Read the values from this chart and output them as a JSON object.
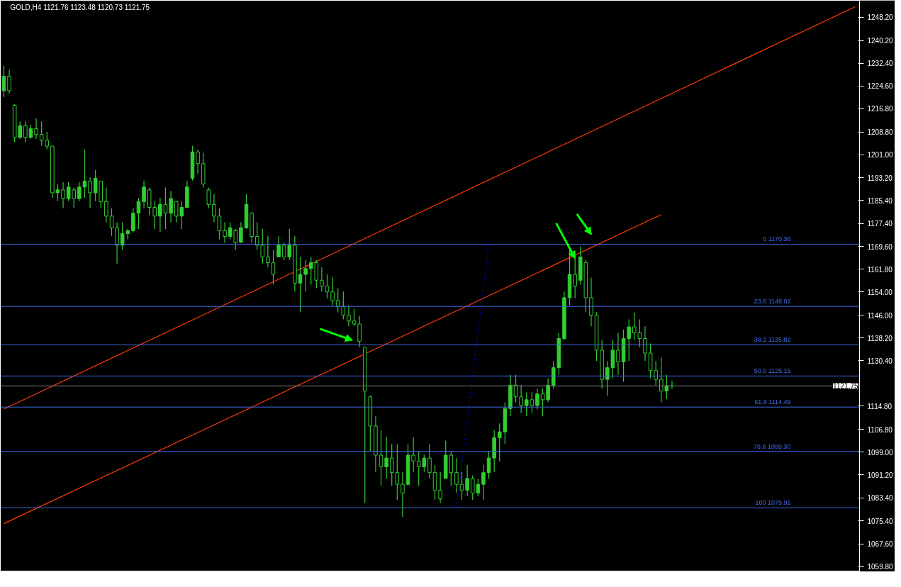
{
  "chart_data": {
    "type": "candlestick",
    "title": "GOLD,H4  1121.76 1123.48 1120.73 1121.75",
    "color": "#32cd32",
    "categories": [
      null,
      null,
      null,
      null,
      null,
      null,
      null,
      null,
      null,
      null,
      null,
      null,
      null,
      null,
      null,
      null,
      null,
      null,
      null,
      null,
      null,
      null,
      null,
      null,
      null,
      null,
      null,
      null,
      null,
      null,
      null,
      null,
      null,
      null,
      null,
      null,
      null,
      null,
      null,
      null,
      null,
      null,
      null,
      null,
      null,
      null,
      null,
      null,
      null,
      null,
      null,
      null,
      null,
      null,
      null,
      null,
      null,
      null,
      null,
      null,
      null,
      null,
      null,
      null,
      null,
      null,
      null,
      null,
      null,
      null,
      null,
      null,
      null,
      null,
      null,
      null,
      null,
      null,
      null,
      null,
      null,
      null,
      null,
      null,
      null,
      null,
      null,
      null,
      null,
      null,
      null,
      null,
      null,
      null,
      null,
      null,
      null,
      null,
      null,
      null,
      null,
      null,
      null,
      null,
      null,
      null,
      null,
      null,
      null,
      null,
      null,
      null,
      null,
      null,
      null,
      null,
      null,
      null,
      null,
      null,
      null,
      null,
      null,
      null,
      null,
      null,
      null,
      null,
      null,
      null,
      null,
      null,
      null,
      null,
      null,
      null,
      null,
      null,
      null,
      null,
      null,
      null,
      null,
      null,
      null,
      null,
      null,
      null,
      null,
      null,
      null,
      null,
      null,
      null,
      null,
      null,
      null,
      null,
      null
    ],
    "ohlc": [
      [
        1223.0,
        1231.5,
        1220.8,
        1228.0
      ],
      [
        1228.0,
        1230.3,
        1222.0,
        1223.0
      ],
      [
        1218.0,
        1218.4,
        1205.3,
        1207.0
      ],
      [
        1207.0,
        1212.5,
        1206.5,
        1211.0
      ],
      [
        1211.0,
        1212.5,
        1205.3,
        1207.0
      ],
      [
        1207.0,
        1211.3,
        1206.5,
        1210.0
      ],
      [
        1210.0,
        1213.6,
        1206.5,
        1208.0
      ],
      [
        1208.0,
        1212.5,
        1204.1,
        1206.0
      ],
      [
        1206.0,
        1208.9,
        1202.9,
        1204.0
      ],
      [
        1204.0,
        1204.1,
        1186.3,
        1188.0
      ],
      [
        1188.0,
        1191.0,
        1185.1,
        1189.0
      ],
      [
        1189.0,
        1191.7,
        1182.7,
        1186.0
      ],
      [
        1186.0,
        1191.7,
        1185.1,
        1190.0
      ],
      [
        1189.0,
        1189.8,
        1182.7,
        1186.0
      ],
      [
        1186.0,
        1191.7,
        1185.1,
        1190.0
      ],
      [
        1190.0,
        1202.9,
        1186.3,
        1192.0
      ],
      [
        1192.0,
        1193.4,
        1182.7,
        1188.0
      ],
      [
        1188.0,
        1195.8,
        1185.1,
        1193.0
      ],
      [
        1192.0,
        1192.2,
        1182.7,
        1185.0
      ],
      [
        1185.0,
        1189.8,
        1177.9,
        1180.0
      ],
      [
        1180.0,
        1182.7,
        1173.2,
        1176.0
      ],
      [
        1176.0,
        1177.9,
        1163.7,
        1170.0
      ],
      [
        1170.0,
        1177.9,
        1168.4,
        1174.0
      ],
      [
        1174.0,
        1175.6,
        1172.0,
        1175.0
      ],
      [
        1175.0,
        1182.7,
        1174.4,
        1181.0
      ],
      [
        1181.0,
        1186.3,
        1175.6,
        1185.0
      ],
      [
        1185.0,
        1192.2,
        1182.7,
        1190.0
      ],
      [
        1189.0,
        1189.8,
        1180.3,
        1183.0
      ],
      [
        1183.0,
        1185.1,
        1175.6,
        1180.0
      ],
      [
        1180.0,
        1186.3,
        1174.4,
        1184.0
      ],
      [
        1184.0,
        1189.8,
        1175.6,
        1181.0
      ],
      [
        1181.0,
        1188.6,
        1177.9,
        1186.0
      ],
      [
        1185.0,
        1185.1,
        1177.9,
        1180.0
      ],
      [
        1180.0,
        1185.1,
        1175.6,
        1183.0
      ],
      [
        1183.0,
        1192.2,
        1182.7,
        1190.0
      ],
      [
        1193.0,
        1204.1,
        1192.2,
        1202.0
      ],
      [
        1202.0,
        1202.9,
        1194.6,
        1198.0
      ],
      [
        1198.0,
        1201.7,
        1189.8,
        1191.0
      ],
      [
        1189.0,
        1189.8,
        1182.7,
        1184.0
      ],
      [
        1184.0,
        1187.5,
        1177.9,
        1180.0
      ],
      [
        1180.0,
        1182.7,
        1172.0,
        1175.0
      ],
      [
        1175.0,
        1177.9,
        1170.8,
        1173.0
      ],
      [
        1173.0,
        1177.9,
        1172.0,
        1176.0
      ],
      [
        1175.0,
        1175.6,
        1168.4,
        1171.0
      ],
      [
        1171.0,
        1177.9,
        1170.8,
        1176.0
      ],
      [
        1176.0,
        1187.5,
        1175.6,
        1184.0
      ],
      [
        1181.0,
        1181.5,
        1170.8,
        1173.0
      ],
      [
        1173.0,
        1177.9,
        1168.4,
        1170.0
      ],
      [
        1170.0,
        1175.6,
        1163.7,
        1166.0
      ],
      [
        1166.0,
        1173.2,
        1162.5,
        1164.0
      ],
      [
        1164.0,
        1168.4,
        1156.5,
        1160.0
      ],
      [
        1166.0,
        1173.2,
        1166.0,
        1170.0
      ],
      [
        1170.0,
        1170.8,
        1164.9,
        1166.0
      ],
      [
        1166.0,
        1175.6,
        1164.9,
        1170.0
      ],
      [
        1170.0,
        1173.2,
        1154.1,
        1157.0
      ],
      [
        1157.0,
        1166.0,
        1147.0,
        1160.0
      ],
      [
        1160.0,
        1164.9,
        1154.1,
        1162.0
      ],
      [
        1162.0,
        1166.0,
        1156.5,
        1164.0
      ],
      [
        1164.0,
        1164.9,
        1155.3,
        1158.0
      ],
      [
        1158.0,
        1162.5,
        1154.1,
        1156.0
      ],
      [
        1156.0,
        1160.1,
        1151.8,
        1154.0
      ],
      [
        1154.0,
        1158.9,
        1149.4,
        1151.0
      ],
      [
        1151.0,
        1155.3,
        1147.0,
        1149.0
      ],
      [
        1149.0,
        1154.1,
        1144.6,
        1146.0
      ],
      [
        1146.0,
        1149.4,
        1142.2,
        1144.0
      ],
      [
        1144.0,
        1148.2,
        1142.2,
        1143.0
      ],
      [
        1143.0,
        1145.8,
        1135.1,
        1137.0
      ],
      [
        1135.0,
        1135.1,
        1081.6,
        1120.0
      ],
      [
        1118.0,
        1118.4,
        1099.4,
        1108.0
      ],
      [
        1108.0,
        1111.3,
        1092.3,
        1098.0
      ],
      [
        1098.0,
        1106.5,
        1087.5,
        1094.0
      ],
      [
        1094.0,
        1104.2,
        1089.9,
        1097.0
      ],
      [
        1097.0,
        1101.8,
        1087.5,
        1092.0
      ],
      [
        1092.0,
        1101.8,
        1082.7,
        1088.0
      ],
      [
        1088.0,
        1092.3,
        1076.8,
        1085.0
      ],
      [
        1088.0,
        1101.8,
        1087.5,
        1098.0
      ],
      [
        1098.0,
        1104.2,
        1092.3,
        1096.0
      ],
      [
        1096.0,
        1099.4,
        1087.5,
        1094.0
      ],
      [
        1094.0,
        1098.2,
        1092.3,
        1097.0
      ],
      [
        1097.0,
        1101.8,
        1089.9,
        1092.0
      ],
      [
        1092.0,
        1094.6,
        1082.7,
        1086.0
      ],
      [
        1086.0,
        1092.3,
        1081.6,
        1083.0
      ],
      [
        1090.0,
        1103.0,
        1089.9,
        1098.0
      ],
      [
        1098.0,
        1099.4,
        1087.5,
        1092.0
      ],
      [
        1092.0,
        1097.0,
        1085.1,
        1088.0
      ],
      [
        1088.0,
        1092.3,
        1082.7,
        1086.0
      ],
      [
        1086.0,
        1094.6,
        1083.9,
        1090.0
      ],
      [
        1090.0,
        1091.1,
        1082.7,
        1085.0
      ],
      [
        1085.0,
        1089.9,
        1083.9,
        1088.0
      ],
      [
        1088.0,
        1094.6,
        1082.7,
        1092.0
      ],
      [
        1092.0,
        1099.4,
        1089.9,
        1097.0
      ],
      [
        1097.0,
        1106.5,
        1092.3,
        1104.0
      ],
      [
        1104.0,
        1108.9,
        1095.8,
        1106.0
      ],
      [
        1106.0,
        1116.1,
        1101.8,
        1114.0
      ],
      [
        1114.0,
        1125.6,
        1111.3,
        1122.0
      ],
      [
        1122.0,
        1125.6,
        1116.1,
        1118.0
      ],
      [
        1118.0,
        1122.0,
        1112.5,
        1115.0
      ],
      [
        1115.0,
        1119.6,
        1111.3,
        1117.0
      ],
      [
        1117.0,
        1119.6,
        1112.5,
        1115.0
      ],
      [
        1115.0,
        1120.8,
        1113.7,
        1119.0
      ],
      [
        1119.0,
        1120.8,
        1111.3,
        1117.0
      ],
      [
        1117.0,
        1124.4,
        1116.1,
        1122.0
      ],
      [
        1122.0,
        1130.3,
        1120.8,
        1128.0
      ],
      [
        1128.0,
        1139.9,
        1125.6,
        1138.0
      ],
      [
        1138.0,
        1154.1,
        1137.5,
        1152.0
      ],
      [
        1152.0,
        1168.4,
        1149.4,
        1160.0
      ],
      [
        1160.0,
        1166.0,
        1151.8,
        1156.0
      ],
      [
        1158.0,
        1169.6,
        1156.5,
        1166.0
      ],
      [
        1164.0,
        1164.9,
        1147.0,
        1152.0
      ],
      [
        1152.0,
        1158.9,
        1142.2,
        1146.0
      ],
      [
        1146.0,
        1147.0,
        1130.3,
        1134.0
      ],
      [
        1134.0,
        1137.5,
        1120.8,
        1124.0
      ],
      [
        1124.0,
        1130.3,
        1118.4,
        1128.0
      ],
      [
        1128.0,
        1137.5,
        1124.4,
        1134.0
      ],
      [
        1134.0,
        1139.9,
        1125.6,
        1130.0
      ],
      [
        1130.0,
        1141.1,
        1123.2,
        1138.0
      ],
      [
        1138.0,
        1144.6,
        1130.3,
        1142.0
      ],
      [
        1142.0,
        1147.0,
        1137.5,
        1140.0
      ],
      [
        1140.0,
        1144.6,
        1135.1,
        1138.0
      ],
      [
        1138.0,
        1142.2,
        1130.3,
        1133.0
      ],
      [
        1133.0,
        1136.3,
        1124.4,
        1127.0
      ],
      [
        1127.0,
        1130.3,
        1122.0,
        1124.0
      ],
      [
        1124.0,
        1131.5,
        1116.1,
        1120.0
      ],
      [
        1120.0,
        1125.6,
        1117.3,
        1121.8
      ],
      [
        1121.76,
        1123.48,
        1120.73,
        1121.75
      ],
      null,
      null,
      null,
      null,
      null,
      null,
      null,
      null,
      null,
      null,
      null,
      null,
      null,
      null,
      null,
      null,
      null,
      null,
      null,
      null,
      null,
      null,
      null,
      null,
      null,
      null,
      null,
      null,
      null,
      null,
      null,
      null,
      null,
      null
    ],
    "series": [
      {
        "type": "line",
        "color": "#ff3c00",
        "values": [
          1113.8,
          null,
          null,
          null,
          null,
          null,
          null,
          null,
          null,
          null,
          null,
          null,
          null,
          null,
          null,
          null,
          null,
          null,
          null,
          null,
          null,
          null,
          null,
          null,
          null,
          null,
          null,
          null,
          null,
          null,
          null,
          null,
          null,
          null,
          null,
          null,
          null,
          null,
          null,
          null,
          null,
          null,
          null,
          null,
          null,
          null,
          null,
          null,
          null,
          null,
          null,
          null,
          null,
          null,
          null,
          null,
          null,
          null,
          null,
          null,
          null,
          null,
          null,
          null,
          null,
          null,
          null,
          null,
          null,
          null,
          null,
          null,
          null,
          null,
          null,
          null,
          null,
          null,
          null,
          null,
          null,
          null,
          null,
          null,
          null,
          null,
          null,
          null,
          null,
          null,
          null,
          null,
          null,
          null,
          null,
          null,
          null,
          null,
          null,
          null,
          null,
          null,
          null,
          null,
          null,
          null,
          null,
          null,
          null,
          null,
          null,
          null,
          null,
          null,
          null,
          null,
          null,
          null,
          null,
          null,
          null,
          null,
          null,
          null,
          null,
          null,
          null,
          null,
          null,
          null,
          null,
          null,
          null,
          null,
          null,
          null,
          null,
          null,
          null,
          null,
          null,
          null,
          null,
          null,
          null,
          null,
          null,
          null,
          null,
          null,
          null,
          null,
          null,
          null,
          null,
          null,
          null,
          null,
          1251.8
        ]
      },
      {
        "type": "line",
        "color": "#ff3c00",
        "values": [
          1074.5,
          null,
          null,
          null,
          null,
          null,
          null,
          null,
          null,
          null,
          null,
          null,
          null,
          null,
          null,
          null,
          null,
          null,
          null,
          null,
          null,
          null,
          null,
          null,
          null,
          null,
          null,
          null,
          null,
          null,
          null,
          null,
          null,
          null,
          null,
          null,
          null,
          null,
          null,
          null,
          null,
          null,
          null,
          null,
          null,
          null,
          null,
          null,
          null,
          null,
          null,
          null,
          null,
          null,
          null,
          null,
          null,
          null,
          null,
          null,
          null,
          null,
          null,
          null,
          null,
          null,
          null,
          null,
          null,
          null,
          null,
          null,
          null,
          null,
          null,
          null,
          null,
          null,
          null,
          null,
          null,
          null,
          null,
          null,
          null,
          null,
          null,
          null,
          null,
          null,
          null,
          null,
          null,
          null,
          null,
          null,
          null,
          null,
          null,
          null,
          null,
          null,
          null,
          null,
          null,
          null,
          null,
          null,
          null,
          null,
          null,
          null,
          null,
          null,
          null,
          null,
          null,
          null,
          null,
          null,
          null,
          null,
          1180.5,
          null,
          null,
          null,
          null,
          null,
          null,
          null,
          null,
          null,
          null,
          null,
          null,
          null,
          null,
          null,
          null,
          null,
          null,
          null,
          null,
          null,
          null,
          null,
          null,
          null,
          null,
          null,
          null,
          null,
          null,
          null,
          null,
          null,
          null,
          null,
          null
        ]
      },
      {
        "type": "line",
        "color": "#0000ff",
        "line_style": "dotted",
        "values": [
          null,
          null,
          null,
          null,
          null,
          null,
          null,
          null,
          null,
          null,
          null,
          null,
          null,
          null,
          null,
          null,
          null,
          null,
          null,
          null,
          null,
          null,
          null,
          null,
          null,
          null,
          null,
          null,
          null,
          null,
          null,
          null,
          null,
          null,
          null,
          null,
          null,
          null,
          null,
          null,
          null,
          null,
          null,
          null,
          null,
          null,
          null,
          null,
          null,
          null,
          null,
          null,
          null,
          null,
          null,
          null,
          null,
          null,
          null,
          null,
          null,
          null,
          null,
          null,
          null,
          null,
          null,
          null,
          null,
          null,
          null,
          null,
          null,
          null,
          null,
          null,
          null,
          null,
          null,
          null,
          null,
          null,
          null,
          null,
          1080.0,
          null,
          null,
          null,
          null,
          null,
          1170.4,
          null,
          null,
          null,
          null,
          null,
          null,
          null,
          null,
          null,
          null,
          null,
          null,
          null,
          null,
          null,
          null,
          null,
          null,
          null,
          null,
          null,
          null,
          null,
          null,
          null,
          null,
          null,
          null,
          null,
          null,
          null,
          null,
          null,
          null,
          null,
          null,
          null,
          null,
          null,
          null,
          null,
          null,
          null,
          null,
          null,
          null,
          null,
          null,
          null,
          null,
          null,
          null,
          null,
          null,
          null,
          null,
          null,
          null,
          null,
          null,
          null,
          null,
          null,
          null,
          null,
          null,
          null,
          null
        ]
      }
    ],
    "ylim": [
      1058,
      1254
    ],
    "yticks": [
      {
        "value": 1059.8,
        "label": "1059.80"
      },
      {
        "value": 1067.6,
        "label": "1067.60"
      },
      {
        "value": 1075.4,
        "label": "1075.40"
      },
      {
        "value": 1083.4,
        "label": "1083.40"
      },
      {
        "value": 1091.2,
        "label": "1091.20"
      },
      {
        "value": 1099.0,
        "label": "1099.00"
      },
      {
        "value": 1106.8,
        "label": "1106.80"
      },
      {
        "value": 1114.8,
        "label": "1114.80"
      },
      {
        "value": 1130.4,
        "label": "1130.40"
      },
      {
        "value": 1138.2,
        "label": "1138.20"
      },
      {
        "value": 1146.0,
        "label": "1146.00"
      },
      {
        "value": 1154.0,
        "label": "1154.00"
      },
      {
        "value": 1161.8,
        "label": "1161.80"
      },
      {
        "value": 1169.6,
        "label": "1169.60"
      },
      {
        "value": 1177.4,
        "label": "1177.40"
      },
      {
        "value": 1185.4,
        "label": "1185.40"
      },
      {
        "value": 1193.2,
        "label": "1193.20"
      },
      {
        "value": 1201.0,
        "label": "1201.00"
      },
      {
        "value": 1208.8,
        "label": "1208.80"
      },
      {
        "value": 1216.8,
        "label": "1216.80"
      },
      {
        "value": 1224.6,
        "label": "1224.60"
      },
      {
        "value": 1232.4,
        "label": "1232.40"
      },
      {
        "value": 1240.2,
        "label": "1240.20"
      },
      {
        "value": 1248.2,
        "label": "1248.20"
      }
    ],
    "tick_labels": "y",
    "ref_lines": [
      {
        "axis": "y",
        "value": 1170.36,
        "label": "0 1170.36",
        "color": "#4169e1"
      },
      {
        "axis": "y",
        "value": 1149.02,
        "label": "23.6 1149.02",
        "color": "#4169e1"
      },
      {
        "axis": "y",
        "value": 1135.82,
        "label": "38.2 1135.82",
        "color": "#4169e1"
      },
      {
        "axis": "y",
        "value": 1125.15,
        "label": "50.0 1125.15",
        "color": "#4169e1"
      },
      {
        "axis": "y",
        "value": 1114.49,
        "label": "61.8 1114.49",
        "color": "#4169e1"
      },
      {
        "axis": "y",
        "value": 1099.3,
        "label": "78.6 1099.30",
        "color": "#4169e1"
      },
      {
        "axis": "y",
        "value": 1079.95,
        "label": "100 1079.95",
        "color": "#4169e1"
      },
      {
        "axis": "y",
        "value": 1121.75,
        "label": "1121.75",
        "color": "#808080"
      }
    ],
    "grid": false
  }
}
